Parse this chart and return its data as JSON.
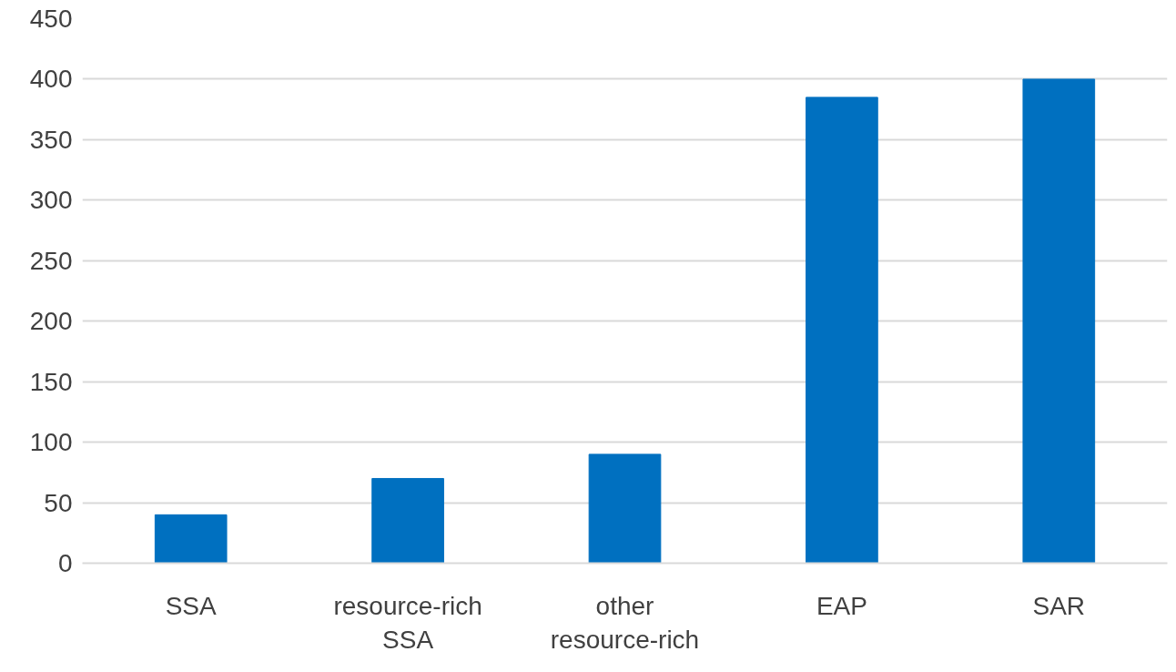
{
  "chart_data": {
    "type": "bar",
    "categories": [
      "SSA",
      "resource-rich SSA",
      "other resource-rich",
      "EAP",
      "SAR"
    ],
    "values": [
      40,
      70,
      90,
      385,
      400
    ],
    "color": "#0070c0",
    "ylim": [
      0,
      450
    ],
    "yticks": [
      0,
      50,
      100,
      150,
      200,
      250,
      300,
      350,
      400,
      450
    ],
    "grid": "y"
  }
}
